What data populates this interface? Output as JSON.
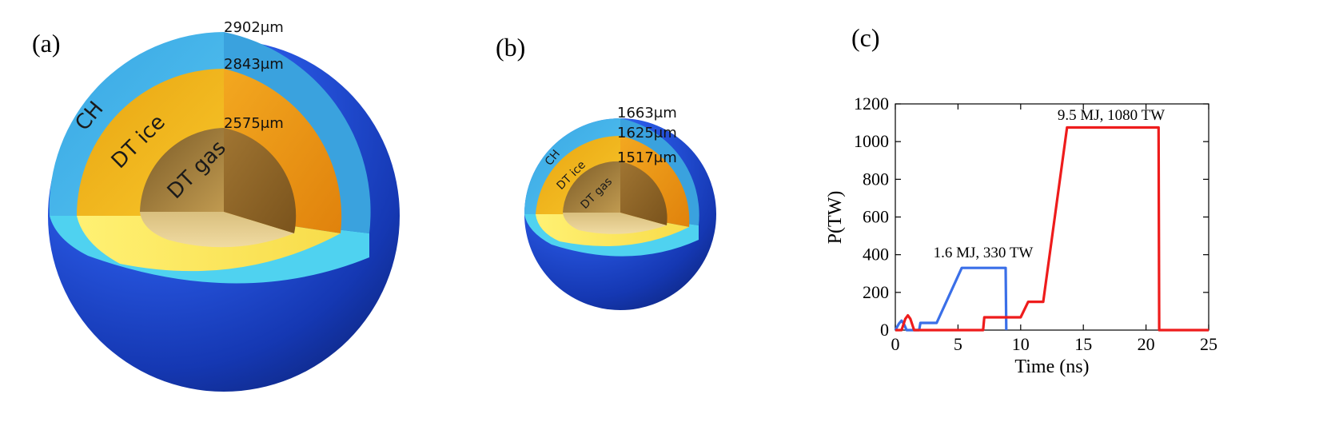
{
  "panels": {
    "a": {
      "label": "(a)",
      "radii": [
        "2902μm",
        "2843μm",
        "2575μm"
      ],
      "layers": [
        "CH",
        "DT ice",
        "DT gas"
      ]
    },
    "b": {
      "label": "(b)",
      "radii": [
        "1663μm",
        "1625μm",
        "1517μm"
      ],
      "layers": [
        "CH",
        "DT ice",
        "DT gas"
      ]
    },
    "c": {
      "label": "(c)"
    }
  },
  "colors": {
    "ch_shell": "#1e4fd6",
    "ch_cut": "#41b8ec",
    "ice_cut": "#f2b416",
    "gas_cut": "#b08a3c",
    "blue_series": "#3a6fe8",
    "red_series": "#ee1c1c"
  },
  "chart_data": {
    "type": "line",
    "title": "",
    "xlabel": "Time (ns)",
    "ylabel": "P(TW)",
    "xlim": [
      0,
      25
    ],
    "ylim": [
      0,
      1200
    ],
    "xticks": [
      0,
      5,
      10,
      15,
      20,
      25
    ],
    "yticks": [
      0,
      200,
      400,
      600,
      800,
      1000,
      1200
    ],
    "grid": false,
    "series": [
      {
        "name": "",
        "color": "#3a6fe8",
        "annotation": "1.6 MJ, 330 TW",
        "points": [
          [
            0,
            0
          ],
          [
            0.3,
            35
          ],
          [
            0.5,
            50
          ],
          [
            0.7,
            30
          ],
          [
            0.9,
            0
          ],
          [
            1.9,
            0
          ],
          [
            2.0,
            38
          ],
          [
            3.3,
            38
          ],
          [
            5.3,
            330
          ],
          [
            8.8,
            330
          ],
          [
            8.85,
            0
          ]
        ]
      },
      {
        "name": "",
        "color": "#ee1c1c",
        "annotation": "9.5 MJ, 1080 TW",
        "points": [
          [
            0,
            0
          ],
          [
            0.5,
            0
          ],
          [
            0.8,
            60
          ],
          [
            1.0,
            78
          ],
          [
            1.2,
            60
          ],
          [
            1.5,
            0
          ],
          [
            7.0,
            0
          ],
          [
            7.1,
            68
          ],
          [
            10.0,
            68
          ],
          [
            10.6,
            150
          ],
          [
            11.8,
            150
          ],
          [
            13.7,
            1075
          ],
          [
            21.0,
            1075
          ],
          [
            21.05,
            0
          ],
          [
            25,
            0
          ]
        ]
      }
    ]
  }
}
